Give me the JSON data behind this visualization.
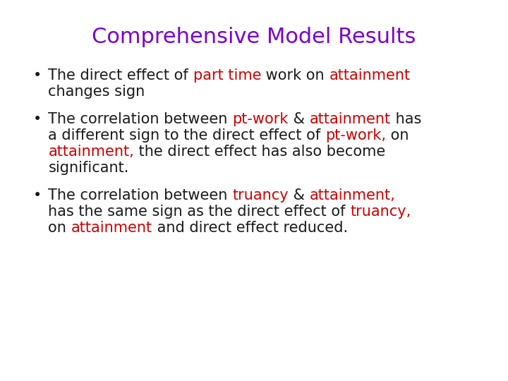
{
  "title": "Comprehensive Model Results",
  "title_color": "#7B00CC",
  "title_fontsize": 22,
  "bg_color": "#FFFFFF",
  "black": "#1a1a1a",
  "red": "#CC0000",
  "bullet1_segments": [
    [
      "The direct effect of ",
      "black"
    ],
    [
      "part time",
      "red"
    ],
    [
      " work on ",
      "black"
    ],
    [
      "attainment",
      "red"
    ],
    [
      "\nchanges sign",
      "black"
    ]
  ],
  "bullet2_segments": [
    [
      "The correlation between ",
      "black"
    ],
    [
      "pt-work",
      "red"
    ],
    [
      " & ",
      "black"
    ],
    [
      "attainment",
      "red"
    ],
    [
      " has\na different sign to the direct effect of ",
      "black"
    ],
    [
      "pt-work,",
      "red"
    ],
    [
      " on\n",
      "black"
    ],
    [
      "attainment,",
      "red"
    ],
    [
      " the direct effect has also become\nsignificant.",
      "black"
    ]
  ],
  "bullet3_segments": [
    [
      "The correlation between ",
      "black"
    ],
    [
      "truancy",
      "red"
    ],
    [
      " & ",
      "black"
    ],
    [
      "attainment,",
      "red"
    ],
    [
      "\nhas the same sign as the direct effect of ",
      "black"
    ],
    [
      "truancy,",
      "red"
    ],
    [
      "\non ",
      "black"
    ],
    [
      "attainment",
      "red"
    ],
    [
      " and direct effect reduced.",
      "black"
    ]
  ],
  "fontsize": 15,
  "font_family": "DejaVu Sans"
}
